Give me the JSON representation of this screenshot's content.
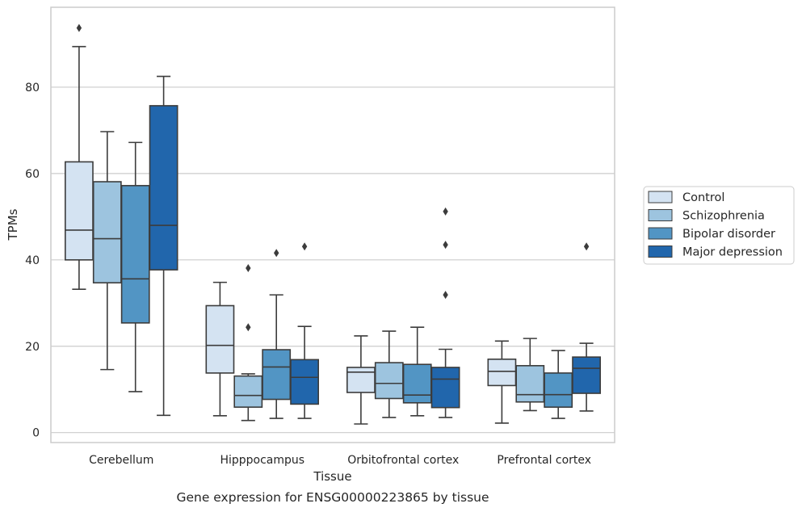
{
  "chart_data": {
    "type": "box",
    "xlabel": "Tissue",
    "ylabel": "TPMs",
    "caption": "Gene expression for ENSG00000223865 by tissue",
    "ylim": [
      -2.3,
      98.5
    ],
    "yticks": [
      0,
      20,
      40,
      60,
      80
    ],
    "grid": "horizontal",
    "legend_position": "right",
    "categories": [
      "Cerebellum",
      "Hipppocampus",
      "Orbitofrontal cortex",
      "Prefrontal cortex"
    ],
    "series": [
      {
        "name": "Control",
        "color": "#d4e3f2",
        "boxes": [
          {
            "whisker_low": 33.2,
            "q1": 40.0,
            "median": 46.9,
            "q3": 62.7,
            "whisker_high": 89.4,
            "outliers": [
              93.7
            ]
          },
          {
            "whisker_low": 3.9,
            "q1": 13.8,
            "median": 20.2,
            "q3": 29.4,
            "whisker_high": 34.8,
            "outliers": []
          },
          {
            "whisker_low": 2.0,
            "q1": 9.3,
            "median": 14.0,
            "q3": 15.1,
            "whisker_high": 22.4,
            "outliers": []
          },
          {
            "whisker_low": 2.2,
            "q1": 10.9,
            "median": 14.2,
            "q3": 17.0,
            "whisker_high": 21.2,
            "outliers": []
          }
        ]
      },
      {
        "name": "Schizophrenia",
        "color": "#9dc4df",
        "boxes": [
          {
            "whisker_low": 14.6,
            "q1": 34.7,
            "median": 44.9,
            "q3": 58.1,
            "whisker_high": 69.7,
            "outliers": []
          },
          {
            "whisker_low": 2.8,
            "q1": 5.9,
            "median": 8.6,
            "q3": 13.1,
            "whisker_high": 13.6,
            "outliers": [
              38.1,
              24.4
            ]
          },
          {
            "whisker_low": 3.5,
            "q1": 7.9,
            "median": 11.4,
            "q3": 16.2,
            "whisker_high": 23.5,
            "outliers": []
          },
          {
            "whisker_low": 5.1,
            "q1": 7.1,
            "median": 8.8,
            "q3": 15.5,
            "whisker_high": 21.8,
            "outliers": []
          }
        ]
      },
      {
        "name": "Bipolar disorder",
        "color": "#5295c4",
        "boxes": [
          {
            "whisker_low": 9.5,
            "q1": 25.4,
            "median": 35.6,
            "q3": 57.2,
            "whisker_high": 67.2,
            "outliers": []
          },
          {
            "whisker_low": 3.3,
            "q1": 7.7,
            "median": 15.2,
            "q3": 19.2,
            "whisker_high": 31.9,
            "outliers": [
              41.6
            ]
          },
          {
            "whisker_low": 3.9,
            "q1": 6.9,
            "median": 8.7,
            "q3": 15.8,
            "whisker_high": 24.4,
            "outliers": []
          },
          {
            "whisker_low": 3.3,
            "q1": 5.9,
            "median": 8.8,
            "q3": 13.8,
            "whisker_high": 19.0,
            "outliers": []
          }
        ]
      },
      {
        "name": "Major depression",
        "color": "#2166ac",
        "boxes": [
          {
            "whisker_low": 4.0,
            "q1": 37.7,
            "median": 48.0,
            "q3": 75.7,
            "whisker_high": 82.5,
            "outliers": []
          },
          {
            "whisker_low": 3.3,
            "q1": 6.6,
            "median": 12.8,
            "q3": 16.9,
            "whisker_high": 24.6,
            "outliers": [
              43.1
            ]
          },
          {
            "whisker_low": 3.5,
            "q1": 5.8,
            "median": 12.4,
            "q3": 15.1,
            "whisker_high": 19.3,
            "outliers": [
              51.2,
              43.5,
              31.9
            ]
          },
          {
            "whisker_low": 5.0,
            "q1": 9.1,
            "median": 14.9,
            "q3": 17.5,
            "whisker_high": 20.7,
            "outliers": [
              43.1
            ]
          }
        ]
      }
    ]
  }
}
